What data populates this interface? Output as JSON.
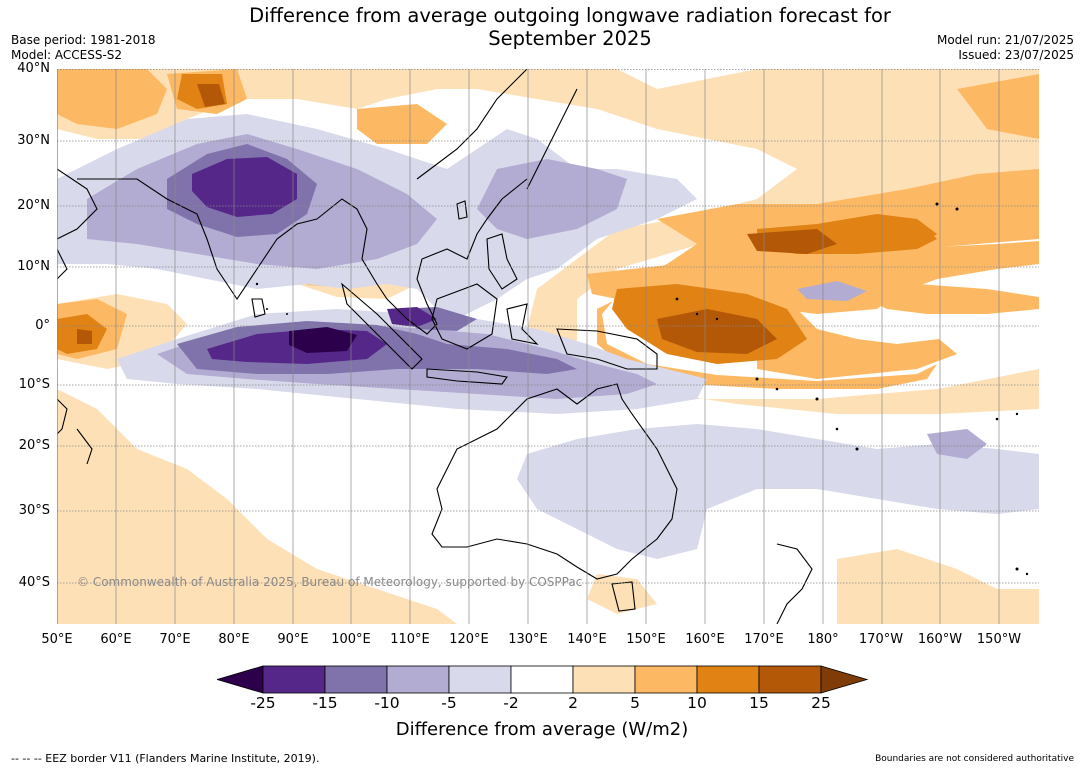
{
  "title_line1": "Difference from average outgoing longwave radiation forecast for",
  "title_line2": "September 2025",
  "base_period": "Base period: 1981-2018",
  "model": "Model: ACCESS-S2",
  "model_run": "Model run: 21/07/2025",
  "issued": "Issued: 23/07/2025",
  "lat_labels": [
    "40°N",
    "30°N",
    "20°N",
    "10°N",
    "0°",
    "10°S",
    "20°S",
    "30°S",
    "40°S"
  ],
  "lon_labels": [
    "50°E",
    "60°E",
    "70°E",
    "80°E",
    "90°E",
    "100°E",
    "110°E",
    "120°E",
    "130°E",
    "140°E",
    "150°E",
    "160°E",
    "170°E",
    "180°",
    "170°W",
    "160°W",
    "150°W"
  ],
  "copyright": "© Commonwealth of Australia 2025, Bureau of Meteorology, supported by COSPPac",
  "colorbar": {
    "ticks": [
      "-25",
      "-15",
      "-10",
      "-5",
      "-2",
      "2",
      "5",
      "10",
      "15",
      "25"
    ],
    "title": "Difference from average (W/m2)",
    "colors": [
      "#2d004b",
      "#542788",
      "#8073ac",
      "#b2abd2",
      "#d8daeb",
      "#ffffff",
      "#fee0b6",
      "#fdb863",
      "#e08214",
      "#b35806",
      "#7f3b08"
    ]
  },
  "footer_left": "--  --  -- EEZ border V11 (Flanders Marine Institute, 2019).",
  "footer_right": "Boundaries are not considered authoritative"
}
